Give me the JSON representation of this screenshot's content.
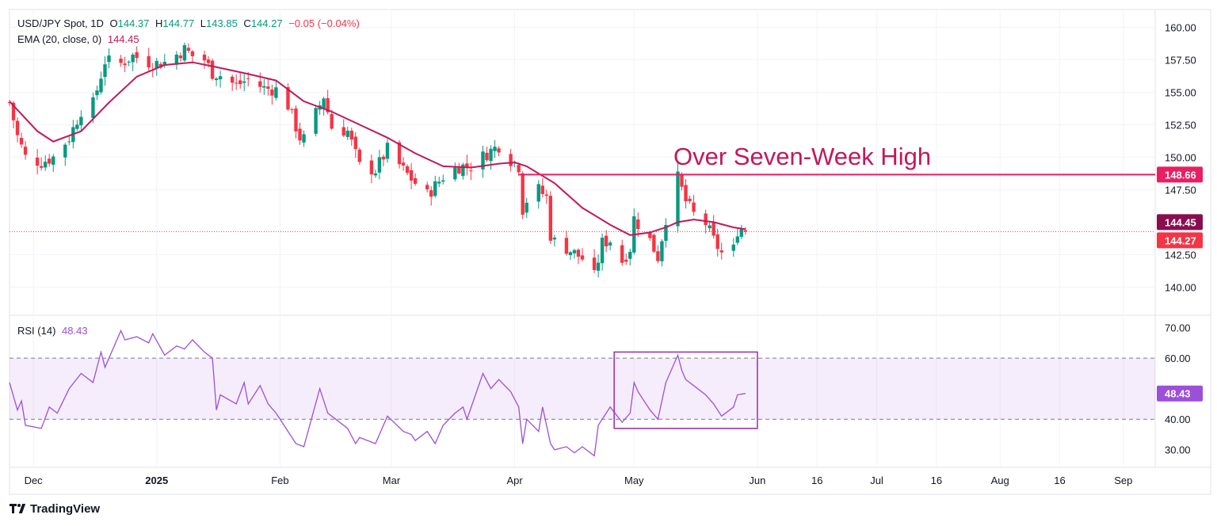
{
  "header": {
    "symbol": "USD/JPY Spot, 1D",
    "open_label": "O",
    "open": "144.37",
    "high_label": "H",
    "high": "144.77",
    "low_label": "L",
    "low": "143.85",
    "close_label": "C",
    "close": "144.27",
    "change": "−0.05 (−0.04%)",
    "ema_label": "EMA (20, close, 0)",
    "ema_value": "144.45",
    "rsi_label": "RSI (14)",
    "rsi_value": "48.43"
  },
  "annotation": {
    "text": "Over Seven-Week High"
  },
  "brand": {
    "name": "TradingView"
  },
  "colors": {
    "up": "#089981",
    "down": "#f23645",
    "ema": "#c2185b",
    "rsi": "#9c4fd8",
    "band": "#9c4fd8",
    "resistance": "#e91e63",
    "price_line": "#f23645"
  },
  "chart_data": {
    "type": "candlestick",
    "title": "USD/JPY Spot, 1D",
    "price_axis": {
      "ylim": [
        138.5,
        161.0
      ],
      "ticks": [
        "160.00",
        "157.50",
        "155.00",
        "152.50",
        "150.00",
        "147.50",
        "142.50",
        "140.00"
      ],
      "tick_values": [
        160,
        157.5,
        155,
        152.5,
        150,
        147.5,
        142.5,
        140
      ]
    },
    "rsi_axis": {
      "ylim": [
        25,
        73
      ],
      "ticks": [
        "70.00",
        "60.00",
        "40.00",
        "30.00"
      ],
      "tick_values": [
        70,
        60,
        40,
        30
      ],
      "band": [
        40,
        60
      ]
    },
    "x_axis": {
      "start": "2024-11-25",
      "end": "2025-09-09",
      "labels": [
        {
          "text": "Dec",
          "date": "2024-12-01"
        },
        {
          "text": "2025",
          "date": "2025-01-01"
        },
        {
          "text": "Feb",
          "date": "2025-02-01"
        },
        {
          "text": "Mar",
          "date": "2025-03-01"
        },
        {
          "text": "Apr",
          "date": "2025-04-01"
        },
        {
          "text": "May",
          "date": "2025-05-01"
        },
        {
          "text": "Jun",
          "date": "2025-06-01"
        },
        {
          "text": "16",
          "date": "2025-06-16"
        },
        {
          "text": "Jul",
          "date": "2025-07-01"
        },
        {
          "text": "16",
          "date": "2025-07-16"
        },
        {
          "text": "Aug",
          "date": "2025-08-01"
        },
        {
          "text": "16",
          "date": "2025-08-16"
        },
        {
          "text": "Sep",
          "date": "2025-09-01"
        }
      ]
    },
    "close_path": [
      [
        "2024-11-25",
        154.2
      ],
      [
        "2024-11-27",
        151.6
      ],
      [
        "2024-11-29",
        150.0
      ],
      [
        "2024-12-03",
        149.6
      ],
      [
        "2024-12-06",
        150.0
      ],
      [
        "2024-12-10",
        151.5
      ],
      [
        "2024-12-13",
        153.6
      ],
      [
        "2024-12-16",
        154.1
      ],
      [
        "2024-12-19",
        157.4
      ],
      [
        "2024-12-23",
        157.2
      ],
      [
        "2024-12-26",
        157.8
      ],
      [
        "2024-12-31",
        157.2
      ],
      [
        "2025-01-03",
        157.3
      ],
      [
        "2025-01-08",
        158.3
      ],
      [
        "2025-01-10",
        157.8
      ],
      [
        "2025-01-13",
        157.5
      ],
      [
        "2025-01-15",
        156.5
      ],
      [
        "2025-01-17",
        156.3
      ],
      [
        "2025-01-21",
        155.5
      ],
      [
        "2025-01-24",
        156.0
      ],
      [
        "2025-01-28",
        155.3
      ],
      [
        "2025-01-31",
        155.2
      ],
      [
        "2025-02-03",
        154.0
      ],
      [
        "2025-02-06",
        151.5
      ],
      [
        "2025-02-07",
        151.4
      ],
      [
        "2025-02-11",
        154.0
      ],
      [
        "2025-02-12",
        154.7
      ],
      [
        "2025-02-14",
        152.3
      ],
      [
        "2025-02-18",
        152.0
      ],
      [
        "2025-02-21",
        149.3
      ],
      [
        "2025-02-25",
        149.0
      ],
      [
        "2025-02-28",
        150.6
      ],
      [
        "2025-03-04",
        149.0
      ],
      [
        "2025-03-07",
        148.0
      ],
      [
        "2025-03-10",
        147.1
      ],
      [
        "2025-03-14",
        148.5
      ],
      [
        "2025-03-18",
        149.3
      ],
      [
        "2025-03-21",
        149.3
      ],
      [
        "2025-03-25",
        150.3
      ],
      [
        "2025-03-28",
        150.9
      ],
      [
        "2025-03-31",
        149.8
      ],
      [
        "2025-04-02",
        149.3
      ],
      [
        "2025-04-03",
        146.0
      ],
      [
        "2025-04-04",
        146.7
      ],
      [
        "2025-04-07",
        147.5
      ],
      [
        "2025-04-09",
        146.9
      ],
      [
        "2025-04-10",
        144.0
      ],
      [
        "2025-04-11",
        143.5
      ],
      [
        "2025-04-14",
        143.0
      ],
      [
        "2025-04-16",
        142.6
      ],
      [
        "2025-04-18",
        142.2
      ],
      [
        "2025-04-21",
        140.8
      ],
      [
        "2025-04-23",
        143.4
      ],
      [
        "2025-04-25",
        143.6
      ],
      [
        "2025-04-28",
        142.0
      ],
      [
        "2025-04-30",
        143.0
      ],
      [
        "2025-05-01",
        145.3
      ],
      [
        "2025-05-05",
        143.6
      ],
      [
        "2025-05-07",
        142.3
      ],
      [
        "2025-05-09",
        145.3
      ],
      [
        "2025-05-12",
        148.4
      ],
      [
        "2025-05-14",
        146.6
      ],
      [
        "2025-05-16",
        145.6
      ],
      [
        "2025-05-19",
        144.9
      ],
      [
        "2025-05-21",
        143.6
      ],
      [
        "2025-05-23",
        142.6
      ],
      [
        "2025-05-26",
        142.9
      ],
      [
        "2025-05-27",
        144.4
      ],
      [
        "2025-05-28",
        144.5
      ],
      [
        "2025-05-29",
        144.27
      ]
    ],
    "ema_20": [
      [
        "2024-11-25",
        154.3
      ],
      [
        "2024-12-02",
        152.0
      ],
      [
        "2024-12-06",
        151.2
      ],
      [
        "2024-12-13",
        152.0
      ],
      [
        "2024-12-20",
        154.2
      ],
      [
        "2024-12-27",
        156.2
      ],
      [
        "2025-01-03",
        157.1
      ],
      [
        "2025-01-10",
        157.3
      ],
      [
        "2025-01-15",
        157.0
      ],
      [
        "2025-01-24",
        156.4
      ],
      [
        "2025-01-31",
        155.9
      ],
      [
        "2025-02-07",
        154.3
      ],
      [
        "2025-02-14",
        153.5
      ],
      [
        "2025-02-21",
        152.5
      ],
      [
        "2025-02-28",
        151.5
      ],
      [
        "2025-03-07",
        150.3
      ],
      [
        "2025-03-14",
        149.3
      ],
      [
        "2025-03-21",
        149.2
      ],
      [
        "2025-03-28",
        149.5
      ],
      [
        "2025-04-01",
        149.6
      ],
      [
        "2025-04-04",
        149.3
      ],
      [
        "2025-04-11",
        148.0
      ],
      [
        "2025-04-18",
        146.1
      ],
      [
        "2025-04-25",
        144.8
      ],
      [
        "2025-04-30",
        144.0
      ],
      [
        "2025-05-05",
        144.2
      ],
      [
        "2025-05-09",
        144.6
      ],
      [
        "2025-05-12",
        145.0
      ],
      [
        "2025-05-16",
        145.2
      ],
      [
        "2025-05-21",
        145.0
      ],
      [
        "2025-05-26",
        144.6
      ],
      [
        "2025-05-29",
        144.45
      ]
    ],
    "rsi": [
      [
        "2024-11-25",
        52
      ],
      [
        "2024-11-27",
        43
      ],
      [
        "2024-11-28",
        46
      ],
      [
        "2024-11-29",
        38
      ],
      [
        "2024-12-03",
        37
      ],
      [
        "2024-12-05",
        44
      ],
      [
        "2024-12-07",
        42
      ],
      [
        "2024-12-10",
        50
      ],
      [
        "2024-12-13",
        55
      ],
      [
        "2024-12-16",
        52
      ],
      [
        "2024-12-18",
        62
      ],
      [
        "2024-12-19",
        57
      ],
      [
        "2024-12-23",
        69
      ],
      [
        "2024-12-24",
        66
      ],
      [
        "2024-12-27",
        67
      ],
      [
        "2024-12-30",
        65
      ],
      [
        "2024-12-31",
        68
      ],
      [
        "2025-01-03",
        61
      ],
      [
        "2025-01-06",
        64
      ],
      [
        "2025-01-08",
        63
      ],
      [
        "2025-01-10",
        66
      ],
      [
        "2025-01-13",
        62
      ],
      [
        "2025-01-15",
        60
      ],
      [
        "2025-01-16",
        43
      ],
      [
        "2025-01-17",
        48
      ],
      [
        "2025-01-21",
        45
      ],
      [
        "2025-01-23",
        52
      ],
      [
        "2025-01-24",
        45
      ],
      [
        "2025-01-27",
        51
      ],
      [
        "2025-01-29",
        45
      ],
      [
        "2025-01-31",
        42
      ],
      [
        "2025-02-03",
        36
      ],
      [
        "2025-02-05",
        32
      ],
      [
        "2025-02-07",
        31
      ],
      [
        "2025-02-11",
        50
      ],
      [
        "2025-02-13",
        42
      ],
      [
        "2025-02-15",
        40
      ],
      [
        "2025-02-18",
        37
      ],
      [
        "2025-02-20",
        32
      ],
      [
        "2025-02-21",
        34
      ],
      [
        "2025-02-25",
        32
      ],
      [
        "2025-02-28",
        41
      ],
      [
        "2025-03-04",
        36
      ],
      [
        "2025-03-06",
        35
      ],
      [
        "2025-03-07",
        33
      ],
      [
        "2025-03-10",
        36
      ],
      [
        "2025-03-12",
        32
      ],
      [
        "2025-03-14",
        38
      ],
      [
        "2025-03-17",
        42
      ],
      [
        "2025-03-19",
        44
      ],
      [
        "2025-03-20",
        40
      ],
      [
        "2025-03-24",
        55
      ],
      [
        "2025-03-26",
        50
      ],
      [
        "2025-03-28",
        53
      ],
      [
        "2025-03-31",
        49
      ],
      [
        "2025-04-02",
        44
      ],
      [
        "2025-04-03",
        32
      ],
      [
        "2025-04-04",
        40
      ],
      [
        "2025-04-07",
        36
      ],
      [
        "2025-04-08",
        44
      ],
      [
        "2025-04-09",
        38
      ],
      [
        "2025-04-10",
        32
      ],
      [
        "2025-04-11",
        30
      ],
      [
        "2025-04-14",
        31
      ],
      [
        "2025-04-16",
        29
      ],
      [
        "2025-04-18",
        31
      ],
      [
        "2025-04-21",
        28
      ],
      [
        "2025-04-22",
        38
      ],
      [
        "2025-04-23",
        40
      ],
      [
        "2025-04-25",
        44
      ],
      [
        "2025-04-28",
        39
      ],
      [
        "2025-04-30",
        42
      ],
      [
        "2025-05-01",
        52
      ],
      [
        "2025-05-02",
        49
      ],
      [
        "2025-05-05",
        43
      ],
      [
        "2025-05-07",
        40
      ],
      [
        "2025-05-09",
        52
      ],
      [
        "2025-05-12",
        61
      ],
      [
        "2025-05-13",
        56
      ],
      [
        "2025-05-14",
        53
      ],
      [
        "2025-05-16",
        51
      ],
      [
        "2025-05-19",
        48
      ],
      [
        "2025-05-21",
        45
      ],
      [
        "2025-05-23",
        41
      ],
      [
        "2025-05-26",
        44
      ],
      [
        "2025-05-27",
        48
      ],
      [
        "2025-05-29",
        48.43
      ]
    ],
    "resistance": {
      "value": 148.66,
      "label": "148.66",
      "from_date": "2025-04-02"
    },
    "current_price": {
      "value": 144.27,
      "label": "144.27"
    },
    "ema_last": {
      "value": 144.45,
      "label": "144.45"
    },
    "rsi_last": {
      "value": 48.43,
      "label": "48.43"
    },
    "rsi_highlight": {
      "from_date": "2025-04-26",
      "to_date": "2025-06-01",
      "rsi_from": 37,
      "rsi_to": 62
    }
  }
}
